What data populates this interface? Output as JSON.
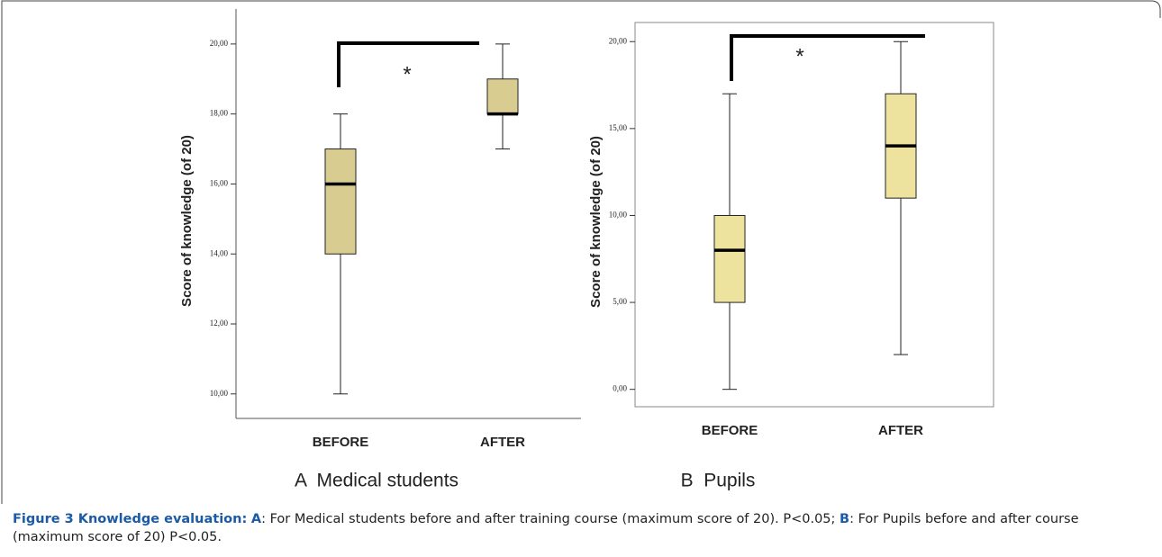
{
  "chart_data": [
    {
      "type": "box",
      "caption": "A  Medical students",
      "ylabel": "Score of knowledge (of 20)",
      "categories": [
        "BEFORE",
        "AFTER"
      ],
      "boxes": [
        {
          "min": 10,
          "q1": 14,
          "median": 16,
          "q3": 17,
          "max": 18
        },
        {
          "min": 17,
          "q1": 18,
          "median": 18,
          "q3": 19,
          "max": 20
        }
      ],
      "color": "#d9cc91",
      "ylim": [
        9.3,
        21
      ],
      "yticks": [
        {
          "value": 10,
          "label": "10,00"
        },
        {
          "value": 12,
          "label": "12,00"
        },
        {
          "value": 14,
          "label": "14,00"
        },
        {
          "value": 16,
          "label": "16,00"
        },
        {
          "value": 18,
          "label": "18,00"
        },
        {
          "value": 20,
          "label": "20,00"
        }
      ],
      "annotation": "*"
    },
    {
      "type": "box",
      "caption": "B  Pupils",
      "ylabel": "Score of knowledge (of 20)",
      "categories": [
        "BEFORE",
        "AFTER"
      ],
      "boxes": [
        {
          "min": 0,
          "q1": 5,
          "median": 8,
          "q3": 10,
          "max": 17
        },
        {
          "min": 2,
          "q1": 11,
          "median": 14,
          "q3": 17,
          "max": 20
        }
      ],
      "color": "#ede39e",
      "ylim": [
        -1.0,
        21.1
      ],
      "yticks": [
        {
          "value": 0,
          "label": "0,00"
        },
        {
          "value": 5,
          "label": "5,00"
        },
        {
          "value": 10,
          "label": "10,00"
        },
        {
          "value": 15,
          "label": "15,00"
        },
        {
          "value": 20,
          "label": "20,00"
        }
      ],
      "annotation": "*"
    }
  ],
  "figure_caption": {
    "title": "Figure 3 Knowledge evaluation:",
    "a_key": "A",
    "a_text": ": For Medical students before and after training course (maximum score of 20). P<0.05; ",
    "b_key": "B",
    "b_text": ": For Pupils before and after course (maximum score of 20) P<0.05."
  }
}
